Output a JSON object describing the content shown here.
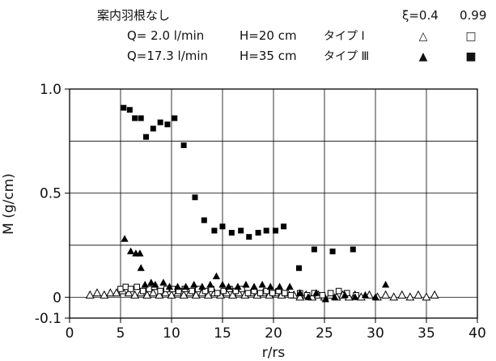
{
  "legend": {
    "title": "案内羽根なし",
    "xi_label": "ξ=0.4",
    "xi_value_2": "0.99",
    "rows": [
      {
        "q": "Q= 2.0 l/min",
        "h": "H=20 cm",
        "type": "タイプ Ⅰ",
        "open_symbol": "△",
        "square_symbol": "□"
      },
      {
        "q": "Q=17.3 l/min",
        "h": "H=35 cm",
        "type": "タイプ Ⅲ",
        "open_symbol": "▲",
        "square_symbol": "■"
      }
    ]
  },
  "chart_data": {
    "type": "scatter",
    "xlabel": "r/rs",
    "ylabel": "M (g/cm)",
    "xlim": [
      0,
      40
    ],
    "ylim": [
      -0.1,
      1.0
    ],
    "x_ticks": [
      "0",
      "5",
      "10",
      "15",
      "20",
      "25",
      "30",
      "35",
      "40"
    ],
    "y_ticks": [
      "1.0",
      "0.5",
      "0",
      "-0.1"
    ],
    "grid": true,
    "series": [
      {
        "marker": "open-triangle",
        "points": [
          [
            2.0,
            0.01
          ],
          [
            2.7,
            0.02
          ],
          [
            3.4,
            0.01
          ],
          [
            4.0,
            0.02
          ],
          [
            4.6,
            0.02
          ],
          [
            5.2,
            0.03
          ],
          [
            5.8,
            0.02
          ],
          [
            6.4,
            0.01
          ],
          [
            7.0,
            0.02
          ],
          [
            7.6,
            0.01
          ],
          [
            8.2,
            0.02
          ],
          [
            8.8,
            0.01
          ],
          [
            9.4,
            0.02
          ],
          [
            10.0,
            0.01
          ],
          [
            10.6,
            0.02
          ],
          [
            11.2,
            0.01
          ],
          [
            11.8,
            0.02
          ],
          [
            12.4,
            0.01
          ],
          [
            13.0,
            0.02
          ],
          [
            13.6,
            0.01
          ],
          [
            14.2,
            0.02
          ],
          [
            14.8,
            0.01
          ],
          [
            15.4,
            0.02
          ],
          [
            16.0,
            0.01
          ],
          [
            16.6,
            0.02
          ],
          [
            17.2,
            0.01
          ],
          [
            17.8,
            0.02
          ],
          [
            18.4,
            0.01
          ],
          [
            19.0,
            0.02
          ],
          [
            19.6,
            0.01
          ],
          [
            20.2,
            0.02
          ],
          [
            20.8,
            0.01
          ],
          [
            21.4,
            0.02
          ],
          [
            22.0,
            0.01
          ],
          [
            22.6,
            0.0
          ],
          [
            23.2,
            0.01
          ],
          [
            23.8,
            0.0
          ],
          [
            24.4,
            0.01
          ],
          [
            25.0,
            0.0
          ],
          [
            25.6,
            0.01
          ],
          [
            26.2,
            0.0
          ],
          [
            26.8,
            0.01
          ],
          [
            27.4,
            0.0
          ],
          [
            28.0,
            0.01
          ],
          [
            28.6,
            0.0
          ],
          [
            29.4,
            0.01
          ],
          [
            30.2,
            0.0
          ],
          [
            31.0,
            0.01
          ],
          [
            31.8,
            0.0
          ],
          [
            32.6,
            0.01
          ],
          [
            33.4,
            0.0
          ],
          [
            34.2,
            0.01
          ],
          [
            35.0,
            0.0
          ],
          [
            35.8,
            0.01
          ]
        ]
      },
      {
        "marker": "open-square",
        "points": [
          [
            5.0,
            0.04
          ],
          [
            5.5,
            0.05
          ],
          [
            6.0,
            0.04
          ],
          [
            6.6,
            0.05
          ],
          [
            7.2,
            0.03
          ],
          [
            7.8,
            0.04
          ],
          [
            8.3,
            0.05
          ],
          [
            8.9,
            0.03
          ],
          [
            9.5,
            0.04
          ],
          [
            10.1,
            0.04
          ],
          [
            10.7,
            0.03
          ],
          [
            11.3,
            0.04
          ],
          [
            12.0,
            0.03
          ],
          [
            12.6,
            0.04
          ],
          [
            13.3,
            0.03
          ],
          [
            13.9,
            0.04
          ],
          [
            14.5,
            0.02
          ],
          [
            15.1,
            0.03
          ],
          [
            15.7,
            0.04
          ],
          [
            16.3,
            0.03
          ],
          [
            16.9,
            0.04
          ],
          [
            17.5,
            0.02
          ],
          [
            18.1,
            0.03
          ],
          [
            18.7,
            0.02
          ],
          [
            19.3,
            0.03
          ],
          [
            19.9,
            0.02
          ],
          [
            20.5,
            0.03
          ],
          [
            21.1,
            0.02
          ],
          [
            21.7,
            0.01
          ],
          [
            22.6,
            0.02
          ],
          [
            23.3,
            0.01
          ],
          [
            24.0,
            0.02
          ],
          [
            24.8,
            0.01
          ],
          [
            25.6,
            0.02
          ],
          [
            26.4,
            0.03
          ],
          [
            27.2,
            0.02
          ],
          [
            28.1,
            0.01
          ]
        ]
      },
      {
        "marker": "filled-triangle",
        "points": [
          [
            5.4,
            0.28
          ],
          [
            6.0,
            0.22
          ],
          [
            6.5,
            0.21
          ],
          [
            6.9,
            0.21
          ],
          [
            7.0,
            0.14
          ],
          [
            7.4,
            0.06
          ],
          [
            8.0,
            0.07
          ],
          [
            8.4,
            0.06
          ],
          [
            9.2,
            0.07
          ],
          [
            9.8,
            0.05
          ],
          [
            10.6,
            0.05
          ],
          [
            11.4,
            0.05
          ],
          [
            12.2,
            0.06
          ],
          [
            13.0,
            0.05
          ],
          [
            13.8,
            0.06
          ],
          [
            14.4,
            0.1
          ],
          [
            15.0,
            0.06
          ],
          [
            15.6,
            0.05
          ],
          [
            16.5,
            0.05
          ],
          [
            17.3,
            0.06
          ],
          [
            18.1,
            0.05
          ],
          [
            18.9,
            0.06
          ],
          [
            19.7,
            0.05
          ],
          [
            20.6,
            0.05
          ],
          [
            21.6,
            0.05
          ],
          [
            22.6,
            0.02
          ],
          [
            23.4,
            0.0
          ],
          [
            24.2,
            0.02
          ],
          [
            25.1,
            -0.01
          ],
          [
            26.0,
            0.0
          ],
          [
            27.0,
            0.01
          ],
          [
            28.0,
            0.0
          ],
          [
            29.0,
            0.01
          ],
          [
            30.0,
            0.0
          ],
          [
            31.0,
            0.06
          ]
        ]
      },
      {
        "marker": "filled-square",
        "points": [
          [
            5.3,
            0.91
          ],
          [
            5.9,
            0.9
          ],
          [
            6.4,
            0.86
          ],
          [
            7.0,
            0.86
          ],
          [
            7.5,
            0.77
          ],
          [
            8.2,
            0.81
          ],
          [
            8.9,
            0.84
          ],
          [
            9.6,
            0.83
          ],
          [
            10.3,
            0.86
          ],
          [
            11.2,
            0.73
          ],
          [
            12.3,
            0.48
          ],
          [
            13.2,
            0.37
          ],
          [
            14.2,
            0.32
          ],
          [
            15.0,
            0.34
          ],
          [
            15.9,
            0.31
          ],
          [
            16.8,
            0.32
          ],
          [
            17.6,
            0.29
          ],
          [
            18.5,
            0.31
          ],
          [
            19.3,
            0.32
          ],
          [
            20.2,
            0.32
          ],
          [
            21.0,
            0.34
          ],
          [
            22.5,
            0.14
          ],
          [
            24.0,
            0.23
          ],
          [
            25.8,
            0.22
          ],
          [
            27.8,
            0.23
          ]
        ]
      }
    ]
  }
}
